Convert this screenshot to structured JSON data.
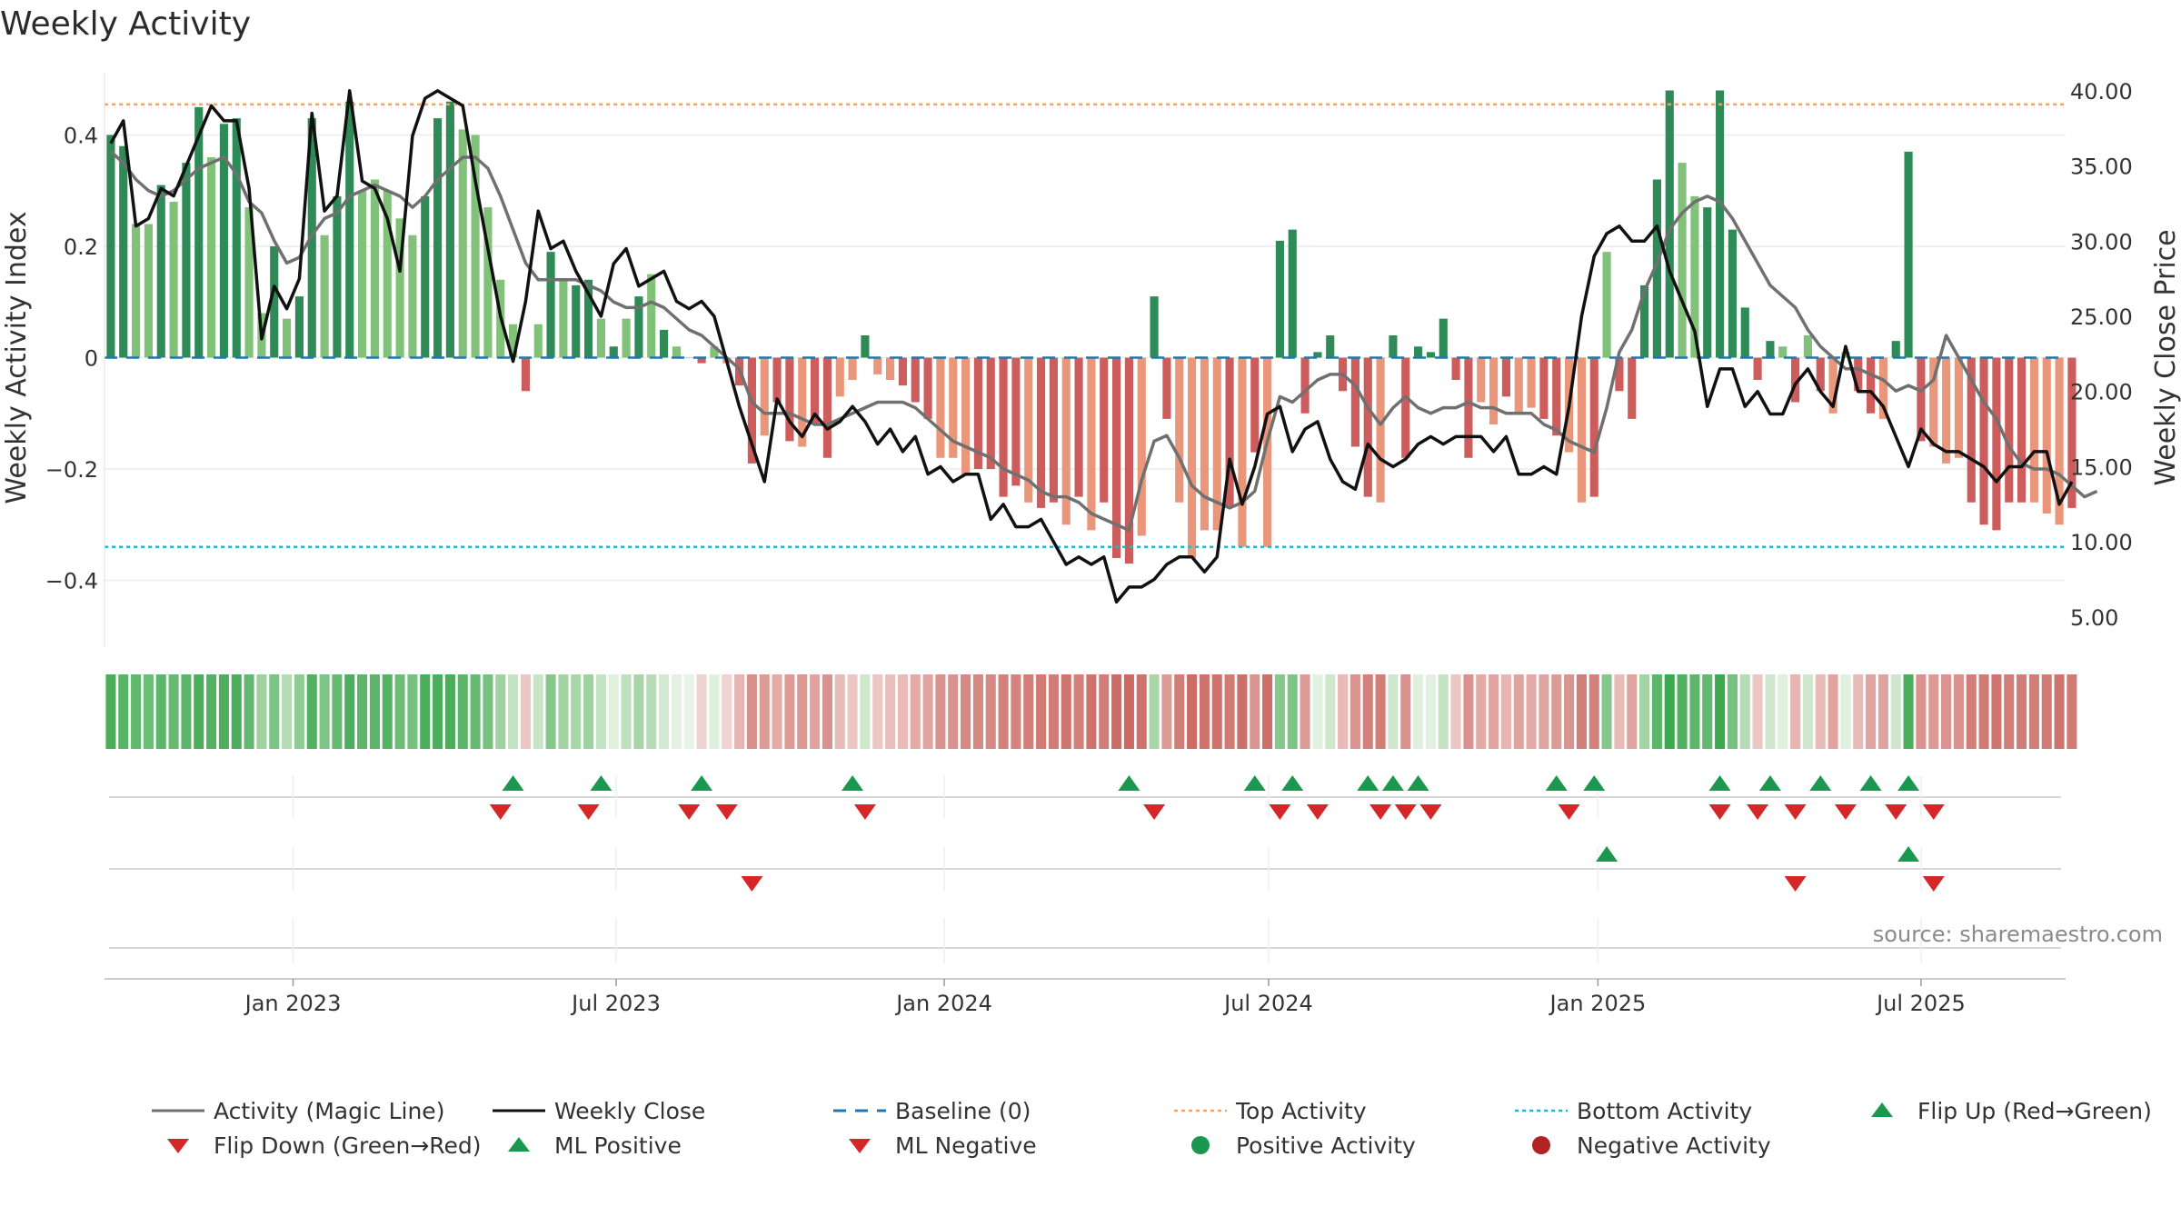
{
  "title": "Weekly Activity",
  "source_text": "source: sharemaestro.com",
  "colors": {
    "dark_green": "#2e8b57",
    "light_green": "#82c17a",
    "dark_red": "#cd5c5c",
    "light_red": "#e9967a",
    "magic_line": "#707070",
    "close_line": "#111111",
    "baseline": "#1f77b4",
    "top_line": "#f4a460",
    "bottom_line": "#17becf",
    "marker_green": "#1a9850",
    "marker_red": "#d62728"
  },
  "chart_data": {
    "type": "bar",
    "title": "Weekly Activity",
    "start_week": 0,
    "weeks_per_month": 4.33,
    "xlim": [
      -0.5,
      155.5
    ],
    "x_ticks": [
      {
        "label": "Jan 2023",
        "week": 14.5
      },
      {
        "label": "Jul 2023",
        "week": 40.2
      },
      {
        "label": "Jan 2024",
        "week": 66.3
      },
      {
        "label": "Jul 2024",
        "week": 92.1
      },
      {
        "label": "Jan 2025",
        "week": 118.3
      },
      {
        "label": "Jul 2025",
        "week": 144.0
      }
    ],
    "left_axis": {
      "label": "Weekly Activity Index",
      "ylim": [
        -0.52,
        0.52
      ],
      "ticks": [
        0.4,
        0.2,
        0,
        -0.2,
        -0.4
      ],
      "tick_labels": [
        "0.4",
        "0.2",
        "0",
        "−0.2",
        "−0.4"
      ]
    },
    "right_axis": {
      "label": "Weekly Close Price",
      "ylim": [
        3.0,
        41.5
      ],
      "ticks": [
        40,
        35,
        30,
        25,
        20,
        15,
        10,
        5
      ],
      "tick_labels": [
        "40.00",
        "35.00",
        "30.00",
        "25.00",
        "20.00",
        "15.00",
        "10.00",
        "5.00"
      ]
    },
    "top_activity": 0.455,
    "bottom_activity": -0.34,
    "activity": [
      0.4,
      0.38,
      0.24,
      0.24,
      0.31,
      0.28,
      0.35,
      0.45,
      0.36,
      0.42,
      0.43,
      0.27,
      0.08,
      0.2,
      0.07,
      0.11,
      0.43,
      0.22,
      0.29,
      0.46,
      0.3,
      0.32,
      0.3,
      0.25,
      0.22,
      0.29,
      0.43,
      0.46,
      0.41,
      0.4,
      0.27,
      0.14,
      0.06,
      -0.06,
      0.06,
      0.19,
      0.14,
      0.13,
      0.14,
      0.07,
      0.02,
      0.07,
      0.11,
      0.15,
      0.05,
      0.02,
      0.0,
      -0.01,
      0.02,
      -0.01,
      -0.05,
      -0.19,
      -0.14,
      -0.08,
      -0.15,
      -0.16,
      -0.12,
      -0.18,
      -0.07,
      -0.04,
      0.04,
      -0.03,
      -0.04,
      -0.05,
      -0.08,
      -0.11,
      -0.18,
      -0.18,
      -0.21,
      -0.2,
      -0.2,
      -0.25,
      -0.23,
      -0.26,
      -0.27,
      -0.26,
      -0.3,
      -0.25,
      -0.31,
      -0.26,
      -0.36,
      -0.37,
      -0.32,
      0.11,
      -0.11,
      -0.26,
      -0.36,
      -0.31,
      -0.31,
      -0.27,
      -0.34,
      -0.17,
      -0.34,
      0.21,
      0.23,
      -0.1,
      0.01,
      0.04,
      -0.06,
      -0.16,
      -0.25,
      -0.26,
      0.04,
      -0.18,
      0.02,
      0.01,
      0.07,
      -0.04,
      -0.18,
      -0.08,
      -0.12,
      -0.07,
      -0.1,
      -0.09,
      -0.11,
      -0.14,
      -0.17,
      -0.26,
      -0.25,
      0.19,
      -0.06,
      -0.11,
      0.13,
      0.32,
      0.48,
      0.35,
      0.29,
      0.27,
      0.48,
      0.23,
      0.09,
      -0.04,
      0.03,
      0.02,
      -0.08,
      0.04,
      -0.06,
      -0.1,
      0.01,
      -0.06,
      -0.1,
      -0.11,
      0.03,
      0.37,
      -0.15,
      -0.16,
      -0.19,
      -0.18,
      -0.26,
      -0.3,
      -0.31,
      -0.26,
      -0.26,
      -0.26,
      -0.28,
      -0.3,
      -0.27
    ],
    "bar_strength": [
      "d",
      "d",
      "l",
      "l",
      "d",
      "l",
      "d",
      "d",
      "l",
      "d",
      "d",
      "l",
      "l",
      "d",
      "l",
      "d",
      "d",
      "l",
      "d",
      "d",
      "l",
      "l",
      "l",
      "l",
      "l",
      "d",
      "d",
      "d",
      "l",
      "l",
      "l",
      "l",
      "l",
      "d",
      "l",
      "d",
      "l",
      "d",
      "d",
      "l",
      "d",
      "l",
      "d",
      "l",
      "d",
      "l",
      "l",
      "d",
      "l",
      "l",
      "d",
      "d",
      "l",
      "d",
      "d",
      "l",
      "d",
      "d",
      "l",
      "l",
      "d",
      "l",
      "l",
      "d",
      "d",
      "d",
      "l",
      "l",
      "l",
      "d",
      "d",
      "d",
      "d",
      "l",
      "d",
      "d",
      "l",
      "d",
      "l",
      "d",
      "d",
      "d",
      "l",
      "d",
      "d",
      "l",
      "l",
      "l",
      "l",
      "d",
      "l",
      "d",
      "l",
      "d",
      "d",
      "d",
      "d",
      "d",
      "d",
      "d",
      "d",
      "l",
      "d",
      "d",
      "d",
      "d",
      "d",
      "d",
      "d",
      "l",
      "l",
      "d",
      "l",
      "l",
      "d",
      "d",
      "l",
      "l",
      "d",
      "l",
      "d",
      "d",
      "d",
      "d",
      "d",
      "l",
      "l",
      "d",
      "d",
      "d",
      "d",
      "d",
      "d",
      "l",
      "d",
      "l",
      "d",
      "l",
      "l",
      "d",
      "d",
      "l",
      "d",
      "d",
      "d",
      "l",
      "l",
      "l",
      "d",
      "d",
      "d",
      "d",
      "d",
      "l",
      "l",
      "l",
      "d"
    ],
    "magic_line": [
      0.37,
      0.35,
      0.32,
      0.3,
      0.29,
      0.3,
      0.32,
      0.34,
      0.35,
      0.36,
      0.33,
      0.28,
      0.26,
      0.21,
      0.17,
      0.18,
      0.22,
      0.25,
      0.26,
      0.29,
      0.3,
      0.31,
      0.3,
      0.29,
      0.27,
      0.29,
      0.32,
      0.34,
      0.36,
      0.36,
      0.34,
      0.29,
      0.23,
      0.17,
      0.14,
      0.14,
      0.14,
      0.14,
      0.13,
      0.12,
      0.1,
      0.09,
      0.09,
      0.1,
      0.09,
      0.07,
      0.05,
      0.04,
      0.02,
      0.0,
      -0.02,
      -0.08,
      -0.1,
      -0.1,
      -0.1,
      -0.11,
      -0.12,
      -0.12,
      -0.11,
      -0.1,
      -0.09,
      -0.08,
      -0.08,
      -0.08,
      -0.09,
      -0.11,
      -0.13,
      -0.15,
      -0.16,
      -0.17,
      -0.18,
      -0.2,
      -0.21,
      -0.22,
      -0.24,
      -0.25,
      -0.25,
      -0.26,
      -0.28,
      -0.29,
      -0.3,
      -0.31,
      -0.22,
      -0.15,
      -0.14,
      -0.18,
      -0.23,
      -0.25,
      -0.26,
      -0.27,
      -0.26,
      -0.24,
      -0.15,
      -0.07,
      -0.08,
      -0.06,
      -0.04,
      -0.03,
      -0.03,
      -0.05,
      -0.09,
      -0.12,
      -0.09,
      -0.07,
      -0.09,
      -0.1,
      -0.09,
      -0.09,
      -0.08,
      -0.09,
      -0.09,
      -0.1,
      -0.1,
      -0.1,
      -0.12,
      -0.13,
      -0.15,
      -0.16,
      -0.17,
      -0.09,
      0.01,
      0.05,
      0.12,
      0.17,
      0.23,
      0.26,
      0.28,
      0.29,
      0.28,
      0.25,
      0.21,
      0.17,
      0.13,
      0.11,
      0.09,
      0.05,
      0.02,
      0.0,
      -0.02,
      -0.02,
      -0.03,
      -0.04,
      -0.06,
      -0.05,
      -0.06,
      -0.04,
      0.04,
      0.0,
      -0.04,
      -0.08,
      -0.11,
      -0.16,
      -0.19,
      -0.2,
      -0.2,
      -0.21,
      -0.23,
      -0.25,
      -0.24
    ],
    "weekly_close": [
      36.5,
      38.0,
      31.0,
      31.5,
      33.5,
      33.0,
      35.0,
      37.0,
      39.0,
      38.0,
      38.0,
      33.5,
      23.5,
      27.0,
      25.5,
      27.5,
      38.5,
      32.0,
      33.0,
      40.0,
      34.0,
      33.5,
      31.5,
      28.0,
      37.0,
      39.5,
      40.0,
      39.5,
      39.0,
      34.0,
      29.5,
      25.0,
      22.0,
      26.0,
      32.0,
      29.5,
      30.0,
      28.0,
      26.5,
      25.0,
      28.5,
      29.5,
      27.0,
      27.5,
      28.0,
      26.0,
      25.5,
      26.0,
      25.0,
      22.0,
      19.0,
      16.5,
      14.0,
      19.5,
      18.0,
      17.0,
      18.5,
      17.5,
      18.0,
      19.0,
      18.0,
      16.5,
      17.5,
      16.0,
      17.0,
      14.5,
      15.0,
      14.0,
      14.5,
      14.5,
      11.5,
      12.5,
      11.0,
      11.0,
      11.5,
      10.0,
      8.5,
      9.0,
      8.5,
      9.0,
      6.0,
      7.0,
      7.0,
      7.5,
      8.5,
      9.0,
      9.0,
      8.0,
      9.0,
      15.5,
      12.5,
      15.0,
      18.5,
      19.0,
      16.0,
      17.5,
      18.0,
      15.5,
      14.0,
      13.5,
      16.5,
      15.5,
      15.0,
      15.5,
      16.5,
      17.0,
      16.5,
      17.0,
      17.0,
      17.0,
      16.0,
      17.0,
      14.5,
      14.5,
      15.0,
      14.5,
      19.0,
      25.0,
      29.0,
      30.5,
      31.0,
      30.0,
      30.0,
      31.0,
      28.0,
      26.0,
      24.0,
      19.0,
      21.5,
      21.5,
      19.0,
      20.0,
      18.5,
      18.5,
      20.5,
      21.5,
      20.0,
      19.0,
      23.0,
      20.0,
      20.0,
      19.0,
      17.0,
      15.0,
      17.5,
      16.5,
      16.0,
      16.0,
      15.5,
      15.0,
      14.0,
      15.0,
      15.0,
      16.0,
      16.0,
      12.5,
      14.0
    ],
    "strip_colors": [
      "#4cae5c",
      "#58b466",
      "#62b86e",
      "#6cbd76",
      "#5db56a",
      "#66ba71",
      "#5db56a",
      "#4cae5c",
      "#55b262",
      "#50af5f",
      "#4cae5c",
      "#62b86e",
      "#9fd2a0",
      "#7dc584",
      "#b5dcb5",
      "#8fcb93",
      "#52b060",
      "#7dc584",
      "#66ba71",
      "#4cae5c",
      "#5db56a",
      "#5db56a",
      "#55b262",
      "#6cbd76",
      "#76c17e",
      "#4cae5c",
      "#4cae5c",
      "#4cae5c",
      "#5db56a",
      "#66ba71",
      "#76c17e",
      "#9fd2a0",
      "#c4e3c3",
      "#ecc6c3",
      "#c8e5c7",
      "#86c88b",
      "#a3d4a4",
      "#a8d6a8",
      "#9fd2a0",
      "#c4e3c3",
      "#dff0dd",
      "#bfe0bf",
      "#a8d6a8",
      "#b5dcb5",
      "#d3ead2",
      "#e2f1e0",
      "#e8f2e6",
      "#eed3d1",
      "#dff0dd",
      "#eed3d1",
      "#e6b5b1",
      "#d98f8a",
      "#dd9b96",
      "#e3aaa6",
      "#dd9b96",
      "#dc9994",
      "#e0a4a0",
      "#d9928d",
      "#e8bbb7",
      "#ecc6c3",
      "#cfe8cd",
      "#ecc6c3",
      "#eabfbb",
      "#e8bbb7",
      "#e3aaa6",
      "#e0a4a0",
      "#d9928d",
      "#d9928d",
      "#d68882",
      "#d68882",
      "#d68882",
      "#d3807a",
      "#d4847f",
      "#d27e78",
      "#d17b75",
      "#d27e78",
      "#cf7570",
      "#d3807a",
      "#ce726c",
      "#d27e78",
      "#cc6c66",
      "#cb6963",
      "#ce726c",
      "#a8d6a8",
      "#dd9b96",
      "#d27e78",
      "#cc6c66",
      "#ce726c",
      "#ce726c",
      "#d17b75",
      "#cd6f69",
      "#da948f",
      "#cd6f69",
      "#86c88b",
      "#7dc584",
      "#dd9b96",
      "#e2f1e0",
      "#cfe8cd",
      "#e8bbb7",
      "#da948f",
      "#d3807a",
      "#d27e78",
      "#cfe8cd",
      "#d9928d",
      "#dff0dd",
      "#e2f1e0",
      "#c4e3c3",
      "#ecc6c3",
      "#d9928d",
      "#e3aaa6",
      "#e0a4a0",
      "#e6b5b1",
      "#e0a4a0",
      "#e3aaa6",
      "#e0a4a0",
      "#dd9b96",
      "#da948f",
      "#d27e78",
      "#d3807a",
      "#86c88b",
      "#e8bbb7",
      "#e0a4a0",
      "#a3d4a4",
      "#5db56a",
      "#3ca84f",
      "#52b060",
      "#5db56a",
      "#62b86e",
      "#3ca84f",
      "#76c17e",
      "#b5dcb5",
      "#ecc6c3",
      "#cfe8cd",
      "#dff0dd",
      "#e6b5b1",
      "#cfe8cd",
      "#e8bbb7",
      "#e0a4a0",
      "#dff0dd",
      "#e8bbb7",
      "#e0a4a0",
      "#e0a4a0",
      "#cfe8cd",
      "#4cae5c",
      "#d9928d",
      "#dc9994",
      "#d9928d",
      "#d9928d",
      "#d27e78",
      "#d17b75",
      "#cf7570",
      "#d27e78",
      "#d27e78",
      "#d27e78",
      "#d17b75",
      "#cf7570",
      "#d17b75"
    ],
    "flip_up_weeks": [
      32,
      39,
      47,
      59,
      81,
      91,
      94,
      100,
      102,
      104,
      115,
      118,
      128,
      132,
      136,
      140,
      143
    ],
    "flip_down_weeks": [
      31,
      38,
      46,
      49,
      60,
      83,
      93,
      96,
      101,
      103,
      105,
      116,
      128,
      131,
      134,
      138,
      142,
      145
    ],
    "ml_positive_weeks": [
      119,
      143
    ],
    "ml_negative_weeks": [
      51,
      134,
      145
    ],
    "positive_activity_weeks": [],
    "negative_activity_weeks": []
  },
  "legend": [
    {
      "label": "Activity (Magic Line)",
      "symbol": "solid-gray-line"
    },
    {
      "label": "Weekly Close",
      "symbol": "solid-black-line"
    },
    {
      "label": "Baseline (0)",
      "symbol": "dashed-blue-line"
    },
    {
      "label": "Top Activity",
      "symbol": "dotted-orange-line"
    },
    {
      "label": "Bottom Activity",
      "symbol": "dotted-cyan-line"
    },
    {
      "label": "Flip Up (Red→Green)",
      "symbol": "green-up-triangle"
    },
    {
      "label": "Flip Down (Green→Red)",
      "symbol": "red-down-triangle"
    },
    {
      "label": "ML Positive",
      "symbol": "green-up-triangle"
    },
    {
      "label": "ML Negative",
      "symbol": "red-down-triangle"
    },
    {
      "label": "Positive Activity",
      "symbol": "green-circle"
    },
    {
      "label": "Negative Activity",
      "symbol": "red-circle"
    }
  ]
}
